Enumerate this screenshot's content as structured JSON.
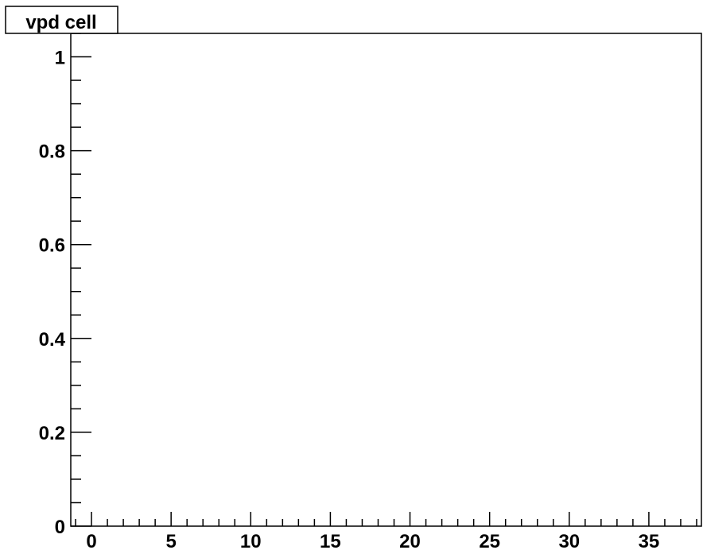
{
  "chart_data": {
    "type": "bar",
    "title": "vpd cell",
    "xlabel": "",
    "ylabel": "",
    "xlim": [
      -1.3,
      38.3
    ],
    "ylim": [
      0,
      1.05
    ],
    "x_major_ticks": [
      0,
      5,
      10,
      15,
      20,
      25,
      30,
      35
    ],
    "x_tick_labels": [
      "0",
      "5",
      "10",
      "15",
      "20",
      "25",
      "30",
      "35"
    ],
    "y_major_ticks": [
      0,
      0.2,
      0.4,
      0.6,
      0.8,
      1
    ],
    "y_tick_labels": [
      "0",
      "0.2",
      "0.4",
      "0.6",
      "0.8",
      "1"
    ],
    "grid": false,
    "series": []
  }
}
